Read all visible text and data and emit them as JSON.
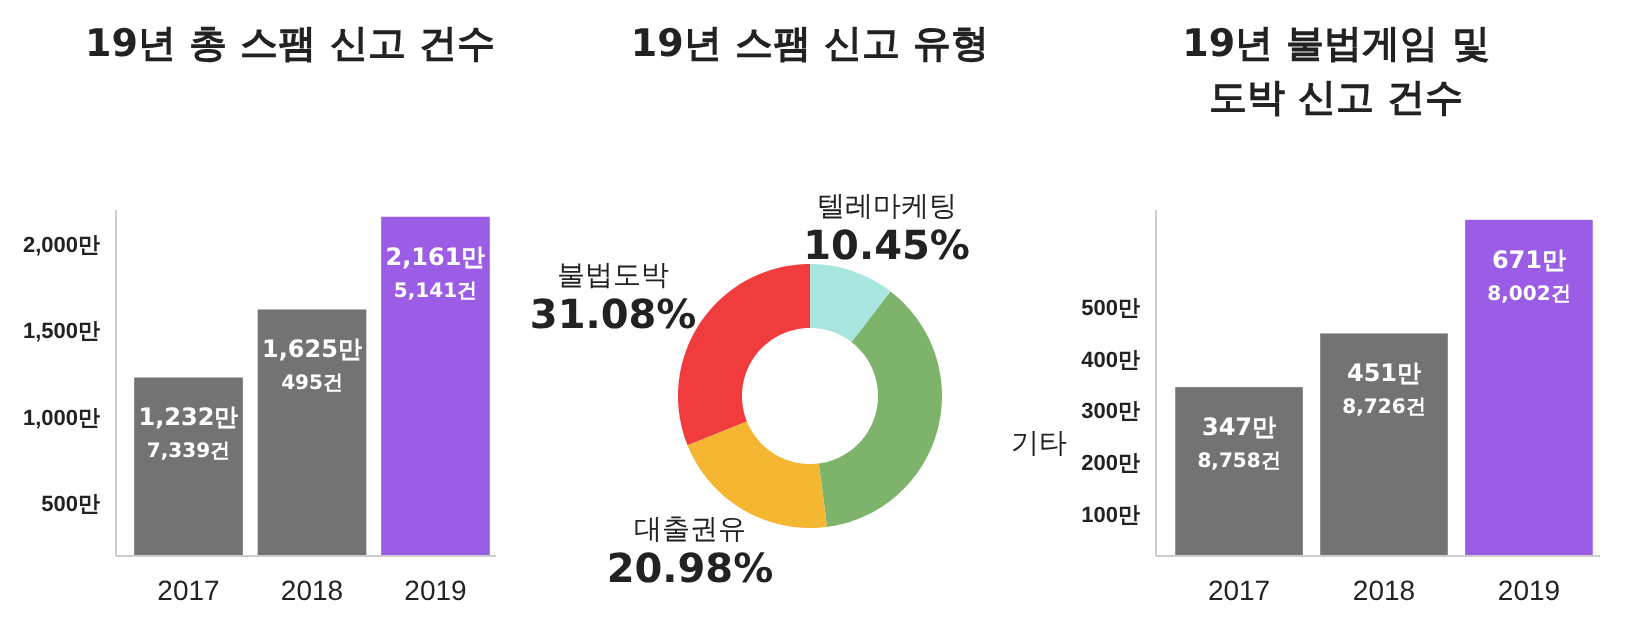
{
  "chart_data": [
    {
      "type": "bar",
      "title": "19년 총 스팸 신고 건수",
      "categories": [
        "2017",
        "2018",
        "2019"
      ],
      "values": [
        1232,
        1625,
        2161
      ],
      "colors": [
        "#737373",
        "#737373",
        "#9b5de5"
      ],
      "value_labels": [
        "1,232만\n7,339건",
        "1,625만\n495건",
        "2,161만\n5,141건"
      ],
      "ylim": [
        200,
        2200
      ],
      "yticks": [
        {
          "value": 500,
          "label": "500만"
        },
        {
          "value": 1000,
          "label": "1,000만"
        },
        {
          "value": 1500,
          "label": "1,500만"
        },
        {
          "value": 2000,
          "label": "2,000만"
        }
      ],
      "grid": false
    },
    {
      "type": "donut",
      "title": "19년 스팸 신고 유형",
      "categories": [
        "텔레마케팅",
        "기타",
        "대출권유",
        "불법도박"
      ],
      "values": [
        10.45,
        37.49,
        20.98,
        31.08
      ],
      "colors": [
        "#a8e6df",
        "#7db36a",
        "#f5b731",
        "#f03c3c"
      ],
      "value_labels": [
        "10.45%",
        null,
        "20.98%",
        "31.08%"
      ]
    },
    {
      "type": "bar",
      "title": "19년 불법게임 및\n도박 신고 건수",
      "categories": [
        "2017",
        "2018",
        "2019"
      ],
      "values": [
        347,
        451,
        671
      ],
      "colors": [
        "#737373",
        "#737373",
        "#9b5de5"
      ],
      "value_labels": [
        "347만\n8,758건",
        "451만\n8,726건",
        "671만\n8,002건"
      ],
      "ylim": [
        20,
        690
      ],
      "yticks": [
        {
          "value": 100,
          "label": "100만"
        },
        {
          "value": 200,
          "label": "200만"
        },
        {
          "value": 300,
          "label": "300만"
        },
        {
          "value": 400,
          "label": "400만"
        },
        {
          "value": 500,
          "label": "500만"
        }
      ],
      "grid": false
    }
  ]
}
